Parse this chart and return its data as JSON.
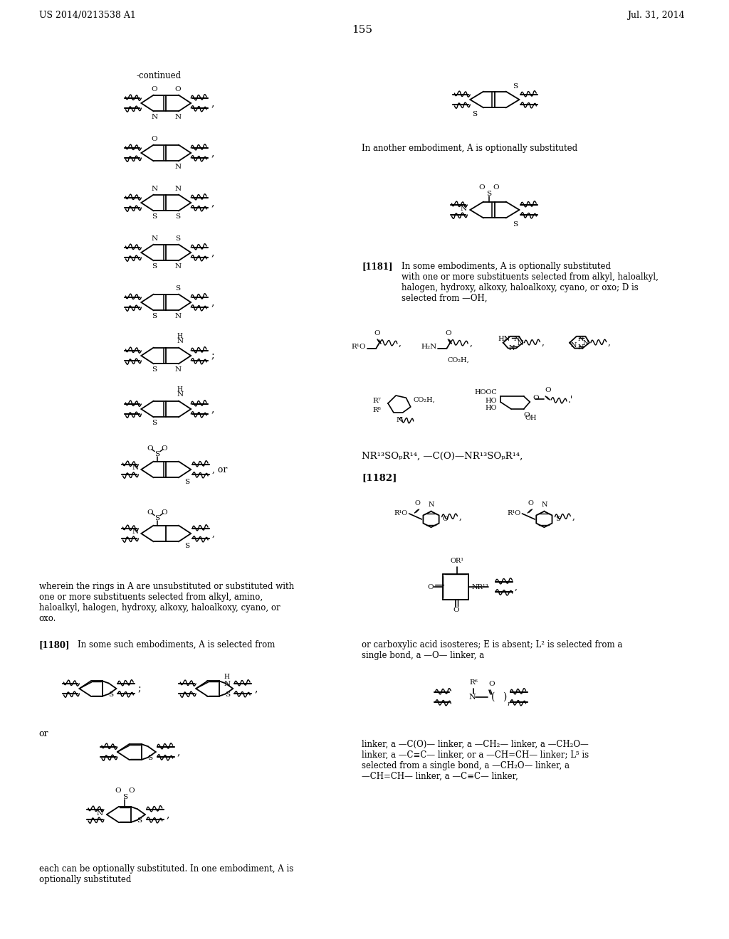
{
  "header_left": "US 2014/0213538 A1",
  "header_right": "Jul. 31, 2014",
  "page_number": "155",
  "bg": "#ffffff",
  "fg": "#000000"
}
